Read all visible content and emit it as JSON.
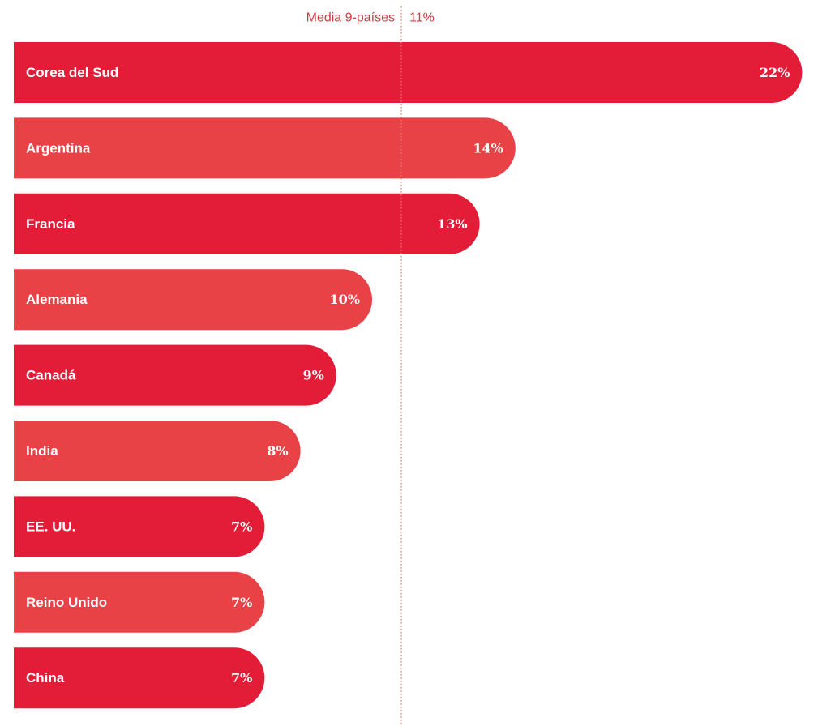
{
  "chart_data": {
    "type": "bar",
    "orientation": "horizontal",
    "categories": [
      "Corea del Sud",
      "Argentina",
      "Francia",
      "Alemania",
      "Canadá",
      "India",
      "EE. UU.",
      "Reino Unido",
      "China"
    ],
    "values": [
      22,
      14,
      13,
      10,
      9,
      8,
      7,
      7,
      7
    ],
    "value_labels": [
      "22%",
      "14%",
      "13%",
      "10%",
      "9%",
      "8%",
      "7%",
      "7%",
      "7%"
    ],
    "reference_line": {
      "label": "Media 9-países",
      "value": 11,
      "value_label": "11%",
      "style": "dotted"
    },
    "title": "",
    "xlabel": "",
    "ylabel": "",
    "xlim": [
      0,
      22
    ],
    "grid": false,
    "legend": "none",
    "colors": {
      "primary": "#e31c38",
      "alternate": "#e84146",
      "reference_line": "#e57a72",
      "reference_text": "#d33a43"
    }
  }
}
